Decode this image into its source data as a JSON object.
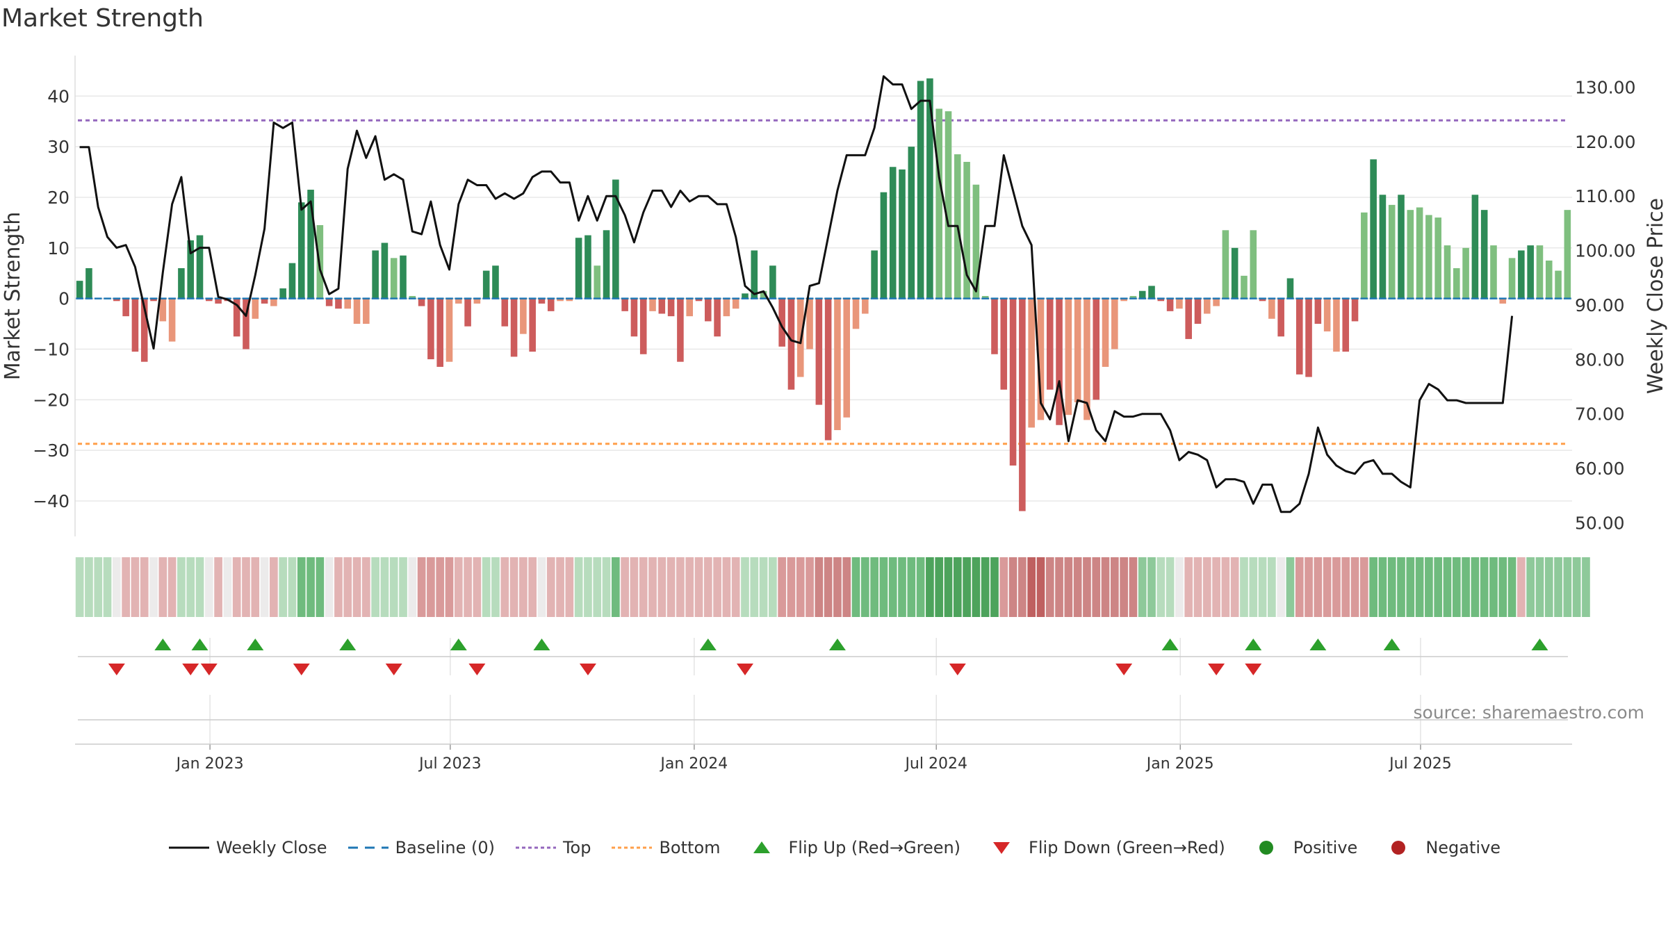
{
  "title": "Market Strength",
  "source": "source: sharemaestro.com",
  "colors": {
    "strong_green": "#2e8b57",
    "light_green": "#7fbf7f",
    "strong_red": "#cd5c5c",
    "light_red": "#e9967a",
    "close_line": "#111111",
    "baseline": "#1f77b4",
    "top": "#9467bd",
    "bottom": "#ff9f4a",
    "flip_up": "#2ca02c",
    "flip_down": "#d62728",
    "positive": "#228b22",
    "negative": "#b22222"
  },
  "legend": [
    {
      "key": "weekly_close",
      "label": "Weekly Close"
    },
    {
      "key": "baseline",
      "label": "Baseline (0)"
    },
    {
      "key": "top",
      "label": "Top"
    },
    {
      "key": "bottom",
      "label": "Bottom"
    },
    {
      "key": "flip_up",
      "label": "Flip Up (Red→Green)"
    },
    {
      "key": "flip_down",
      "label": "Flip Down (Green→Red)"
    },
    {
      "key": "positive",
      "label": "Positive"
    },
    {
      "key": "negative",
      "label": "Negative"
    }
  ],
  "chart_data": {
    "type": "bar",
    "title": "Market Strength",
    "ylabel": "Market Strength",
    "y2label": "Weekly Close Price",
    "ylim": [
      -47,
      48
    ],
    "y2lim": [
      47.5,
      135.8
    ],
    "yticks": [
      -40,
      -30,
      -20,
      -10,
      0,
      10,
      20,
      30,
      40
    ],
    "y2ticks": [
      "50.00",
      "60.00",
      "70.00",
      "80.00",
      "90.00",
      "100.00",
      "110.00",
      "120.00",
      "130.00"
    ],
    "xtick_labels": [
      "Jan 2023",
      "Jul 2023",
      "Jan 2024",
      "Jul 2024",
      "Jan 2025",
      "Jul 2025"
    ],
    "xtick_week_index": [
      14.6,
      40.6,
      67,
      93.2,
      119.6,
      145.6
    ],
    "top_level": 35.2,
    "bottom_level": -28.7,
    "grid": true,
    "legend_position": "bottom",
    "strength": [
      3.5,
      6,
      0,
      0,
      -0.5,
      -3.5,
      -10.5,
      -12.5,
      -0.5,
      -4.5,
      -8.5,
      6,
      11.5,
      12.5,
      -0.5,
      -1,
      -0.5,
      -7.5,
      -10,
      -4,
      -1,
      -1.5,
      2,
      7,
      19,
      21.5,
      14.5,
      -1.5,
      -2,
      -2,
      -5,
      -5,
      9.5,
      11,
      8,
      8.5,
      0.5,
      -1.5,
      -12,
      -13.5,
      -12.5,
      -1,
      -5.5,
      -1,
      5.5,
      6.5,
      -5.5,
      -11.5,
      -7,
      -10.5,
      -1,
      -2.5,
      -0.5,
      -0.5,
      12,
      12.5,
      6.5,
      13.5,
      23.5,
      -2.5,
      -7.5,
      -11,
      -2.5,
      -3,
      -3.5,
      -12.5,
      -3.5,
      -0.5,
      -4.5,
      -7.5,
      -3.5,
      -2,
      1,
      9.5,
      1.5,
      6.5,
      -9.5,
      -18,
      -15.5,
      -10,
      -21,
      -28,
      -26,
      -23.5,
      -6,
      -3,
      9.5,
      21,
      26,
      25.5,
      30,
      43,
      43.5,
      37.5,
      37,
      28.5,
      27,
      22.5,
      0.5,
      -11,
      -18,
      -33,
      -42,
      -25.5,
      -24,
      -18,
      -25,
      -23,
      -20.5,
      -24,
      -20,
      -13.5,
      -10,
      -0.5,
      0.5,
      1.5,
      2.5,
      -0.5,
      -2.5,
      -2,
      -8,
      -5,
      -3,
      -1.5,
      13.5,
      10,
      4.5,
      13.5,
      -0.5,
      -4,
      -7.5,
      4,
      -15,
      -15.5,
      -5,
      -6.5,
      -10.5,
      -10.5,
      -4.5,
      17,
      27.5,
      20.5,
      18.5,
      20.5,
      17.5,
      18,
      16.5,
      16,
      10.5,
      6,
      10,
      20.5,
      17.5,
      10.5,
      -1,
      8,
      9.5,
      10.5,
      10.5,
      7.5,
      5.5,
      17.5
    ],
    "strength_shade": [
      "s",
      "s",
      "x",
      "x",
      "x",
      "s",
      "s",
      "s",
      "x",
      "l",
      "l",
      "s",
      "s",
      "s",
      "x",
      "s",
      "x",
      "s",
      "s",
      "l",
      "x",
      "l",
      "s",
      "s",
      "s",
      "s",
      "l",
      "s",
      "s",
      "l",
      "l",
      "l",
      "s",
      "s",
      "l",
      "s",
      "l",
      "s",
      "s",
      "s",
      "l",
      "l",
      "s",
      "l",
      "s",
      "s",
      "s",
      "s",
      "l",
      "s",
      "x",
      "s",
      "l",
      "l",
      "s",
      "s",
      "l",
      "s",
      "s",
      "s",
      "s",
      "s",
      "l",
      "s",
      "s",
      "s",
      "l",
      "x",
      "s",
      "s",
      "l",
      "l",
      "s",
      "s",
      "l",
      "s",
      "s",
      "s",
      "l",
      "l",
      "s",
      "s",
      "l",
      "l",
      "l",
      "l",
      "s",
      "s",
      "s",
      "s",
      "s",
      "s",
      "s",
      "l",
      "l",
      "l",
      "l",
      "l",
      "l",
      "s",
      "s",
      "s",
      "s",
      "l",
      "l",
      "s",
      "s",
      "l",
      "l",
      "l",
      "s",
      "l",
      "l",
      "l",
      "l",
      "s",
      "s",
      "s",
      "s",
      "l",
      "s",
      "s",
      "l",
      "l",
      "l",
      "s",
      "l",
      "l",
      "s",
      "l",
      "s",
      "s",
      "s",
      "s",
      "s",
      "l",
      "l",
      "s",
      "s",
      "l",
      "s",
      "s",
      "l",
      "s",
      "l",
      "l",
      "l",
      "l",
      "l",
      "l",
      "l",
      "s",
      "s",
      "l",
      "l",
      "l",
      "s",
      "s",
      "l",
      "l",
      "l",
      "l",
      "l",
      "s"
    ],
    "weekly_close": [
      119,
      119,
      108,
      102.5,
      100.5,
      101,
      97,
      89.5,
      82,
      96,
      108.5,
      113.5,
      99.5,
      100.5,
      100.5,
      91.5,
      91,
      90,
      88,
      95.5,
      104,
      123.5,
      122.5,
      123.5,
      107.5,
      109,
      96.5,
      92,
      93,
      115,
      122,
      117,
      121,
      113,
      114,
      113,
      103.5,
      103,
      109,
      101,
      96.5,
      108.5,
      113,
      112,
      112,
      109.5,
      110.5,
      109.5,
      110.5,
      113.5,
      114.5,
      114.5,
      112.5,
      112.5,
      105.5,
      110,
      105.5,
      110,
      110,
      106.5,
      101.5,
      107,
      111,
      111,
      108,
      111,
      109,
      110,
      110,
      108.5,
      108.5,
      102.5,
      93.5,
      92,
      92.5,
      89.5,
      86,
      83.5,
      83,
      93.5,
      94,
      102.5,
      111,
      117.5,
      117.5,
      117.5,
      122.5,
      132,
      130.5,
      130.5,
      126,
      127.5,
      127.5,
      113.5,
      104.5,
      104.5,
      95.5,
      92.5,
      104.5,
      104.5,
      117.5,
      111,
      104.5,
      101,
      72,
      69,
      76,
      65,
      72.5,
      72,
      67,
      65,
      70.5,
      69.5,
      69.5,
      70,
      70,
      70,
      67,
      61.5,
      63,
      62.5,
      61.5,
      56.5,
      58,
      58,
      57.5,
      53.5,
      57,
      57,
      52,
      52,
      53.5,
      59,
      67.5,
      62.5,
      60.5,
      59.5,
      59,
      61,
      61.5,
      59,
      59,
      57.5,
      56.5,
      72.5,
      75.5,
      74.5,
      72.5,
      72.5,
      72,
      72,
      72,
      72,
      72,
      88
    ],
    "rating_levels": [
      1,
      1,
      1,
      1,
      0,
      2,
      2,
      2,
      0,
      2,
      2,
      1,
      1,
      1,
      0,
      2,
      0,
      2,
      2,
      2,
      0,
      2,
      1,
      1,
      3,
      3,
      3,
      0,
      2,
      2,
      2,
      2,
      1,
      1,
      1,
      1,
      0,
      3,
      3,
      3,
      3,
      2,
      2,
      2,
      1,
      1,
      2,
      2,
      2,
      2,
      0,
      2,
      2,
      2,
      1,
      1,
      1,
      1,
      3,
      2,
      2,
      2,
      2,
      2,
      2,
      2,
      2,
      2,
      2,
      2,
      2,
      2,
      1,
      1,
      1,
      1,
      3,
      3,
      3,
      3,
      4,
      4,
      4,
      4,
      3,
      3,
      3,
      3,
      3,
      3,
      3,
      3,
      4,
      4,
      4,
      4,
      4,
      4,
      4,
      4,
      3,
      4,
      4,
      5,
      5,
      4,
      4,
      4,
      4,
      4,
      4,
      4,
      4,
      4,
      4,
      2,
      2,
      1,
      1,
      0,
      2,
      2,
      2,
      2,
      2,
      2,
      1,
      1,
      1,
      1,
      0,
      2,
      3,
      3,
      3,
      3,
      3,
      3,
      3,
      3,
      3,
      3,
      3,
      3,
      3,
      3,
      3,
      3,
      3,
      3,
      3,
      3,
      3,
      3,
      3,
      3,
      2,
      2,
      2,
      2,
      2,
      2,
      2,
      2
    ],
    "rating_signs": [
      1,
      1,
      1,
      1,
      0,
      -1,
      -1,
      -1,
      0,
      -1,
      -1,
      1,
      1,
      1,
      0,
      -1,
      0,
      -1,
      -1,
      -1,
      0,
      -1,
      1,
      1,
      1,
      1,
      1,
      0,
      -1,
      -1,
      -1,
      -1,
      1,
      1,
      1,
      1,
      0,
      -1,
      -1,
      -1,
      -1,
      -1,
      -1,
      -1,
      1,
      1,
      -1,
      -1,
      -1,
      -1,
      0,
      -1,
      -1,
      -1,
      1,
      1,
      1,
      1,
      1,
      -1,
      -1,
      -1,
      -1,
      -1,
      -1,
      -1,
      -1,
      -1,
      -1,
      -1,
      -1,
      -1,
      1,
      1,
      1,
      1,
      -1,
      -1,
      -1,
      -1,
      -1,
      -1,
      -1,
      -1,
      1,
      1,
      1,
      1,
      1,
      1,
      1,
      1,
      1,
      1,
      1,
      1,
      1,
      1,
      1,
      1,
      -1,
      -1,
      -1,
      -1,
      -1,
      -1,
      -1,
      -1,
      -1,
      -1,
      -1,
      -1,
      -1,
      -1,
      -1,
      1,
      1,
      1,
      1,
      0,
      -1,
      -1,
      -1,
      -1,
      -1,
      -1,
      1,
      1,
      1,
      1,
      0,
      1,
      -1,
      -1,
      -1,
      -1,
      -1,
      -1,
      -1,
      -1,
      1,
      1,
      1,
      1,
      1,
      1,
      1,
      1,
      1,
      1,
      1,
      1,
      1,
      1,
      1,
      1,
      -1,
      1,
      1,
      1,
      1,
      1,
      1,
      1,
      1
    ],
    "flip_up_weeks": [
      9,
      13,
      19,
      29,
      41,
      50,
      68,
      82,
      118,
      127,
      134,
      142,
      158
    ],
    "flip_down_weeks": [
      4,
      12,
      14,
      24,
      34,
      43,
      55,
      72,
      95,
      113,
      123,
      127
    ]
  }
}
